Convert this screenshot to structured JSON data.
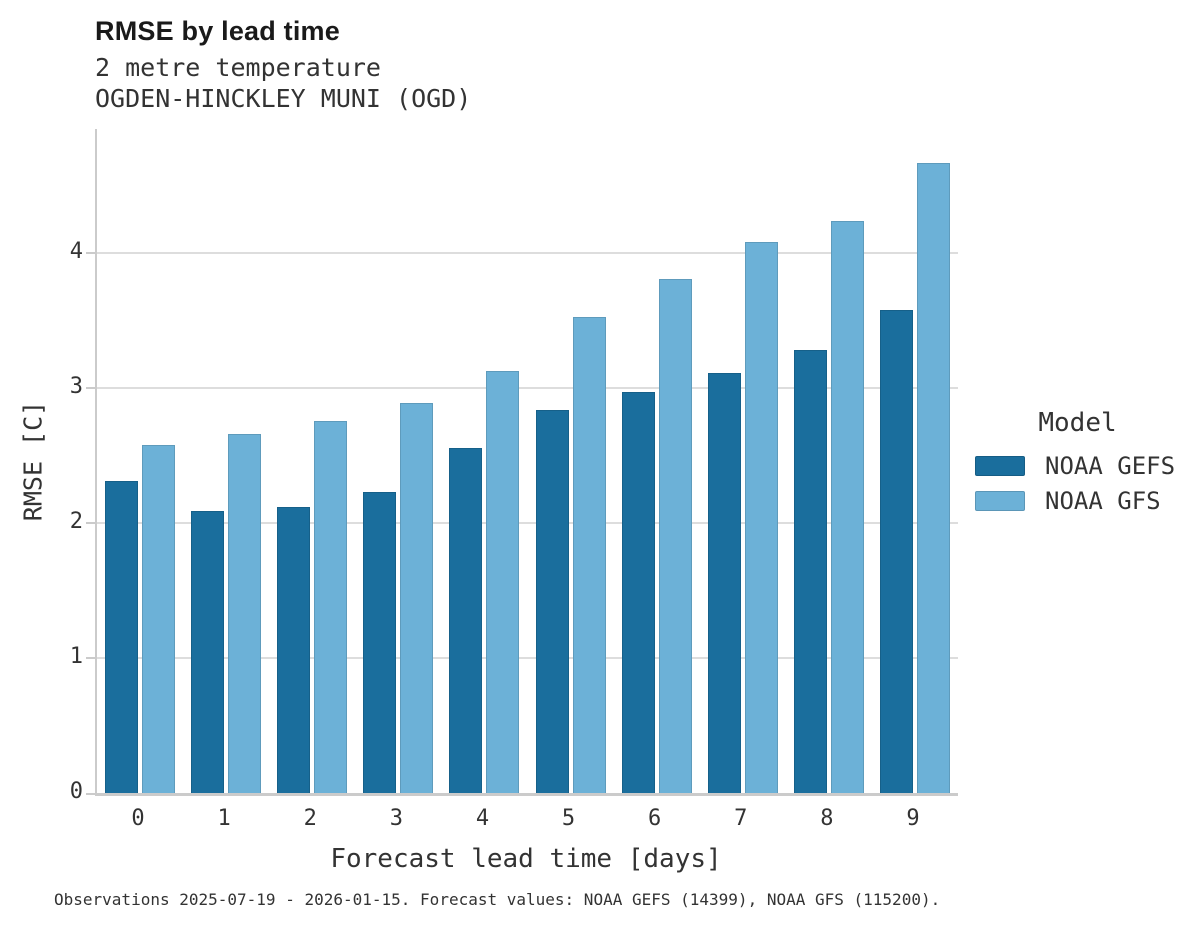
{
  "header": {
    "title": "RMSE by lead time",
    "subtitle_line1": "2 metre temperature",
    "subtitle_line2": "OGDEN-HINCKLEY MUNI (OGD)"
  },
  "chart_data": {
    "type": "bar",
    "title": "RMSE by lead time",
    "subtitle": [
      "2 metre temperature",
      "OGDEN-HINCKLEY MUNI (OGD)"
    ],
    "categories": [
      "0",
      "1",
      "2",
      "3",
      "4",
      "5",
      "6",
      "7",
      "8",
      "9"
    ],
    "series": [
      {
        "name": "NOAA GEFS",
        "color": "#1a6e9d",
        "values": [
          2.31,
          2.09,
          2.12,
          2.23,
          2.56,
          2.84,
          2.97,
          3.11,
          3.28,
          3.58
        ]
      },
      {
        "name": "NOAA GFS",
        "color": "#6cb1d7",
        "values": [
          2.58,
          2.66,
          2.76,
          2.89,
          3.13,
          3.53,
          3.81,
          4.08,
          4.24,
          4.67
        ]
      }
    ],
    "xlabel": "Forecast lead time [days]",
    "ylabel": "RMSE [C]",
    "ylim": [
      0,
      4.92
    ],
    "yticks": [
      0,
      1,
      2,
      3,
      4
    ],
    "grid": "horizontal-only",
    "legend_position": "right-middle"
  },
  "legend": {
    "title": "Model",
    "entries": [
      {
        "label": "NOAA GEFS",
        "color": "#1a6e9d"
      },
      {
        "label": "NOAA GFS",
        "color": "#6cb1d7"
      }
    ]
  },
  "caption": "Observations 2025-07-19 - 2026-01-15. Forecast values: NOAA GEFS (14399), NOAA GFS (115200).",
  "colors": {
    "grid": "#dddddd",
    "axis": "#cbcbcb",
    "text": "#333333",
    "title_text": "#1a1a1a",
    "background": "#ffffff"
  }
}
